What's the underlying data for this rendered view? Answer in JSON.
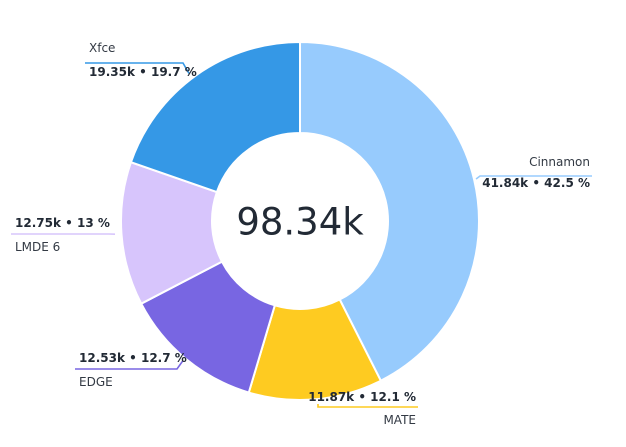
{
  "chart_data": {
    "type": "pie",
    "variant": "donut",
    "center_label": "98.34k",
    "slices": [
      {
        "name": "Cinnamon",
        "value": 41.84,
        "value_label": "41.84k • 42.5 %",
        "percent": 42.5,
        "color": "#97cbfd",
        "leader_color": "#97cbfd"
      },
      {
        "name": "MATE",
        "value": 11.87,
        "value_label": "11.87k • 12.1 %",
        "percent": 12.1,
        "color": "#fecb21",
        "leader_color": "#fecb21"
      },
      {
        "name": "EDGE",
        "value": 12.53,
        "value_label": "12.53k • 12.7 %",
        "percent": 12.7,
        "color": "#7866e2",
        "leader_color": "#7866e2"
      },
      {
        "name": "LMDE 6",
        "value": 12.75,
        "value_label": "12.75k • 13 %",
        "percent": 13.0,
        "color": "#d7c5fc",
        "leader_color": "#d7c5fc"
      },
      {
        "name": "Xfce",
        "value": 19.35,
        "value_label": "19.35k • 19.7 %",
        "percent": 19.7,
        "color": "#3598e6",
        "leader_color": "#3598e6"
      }
    ]
  }
}
